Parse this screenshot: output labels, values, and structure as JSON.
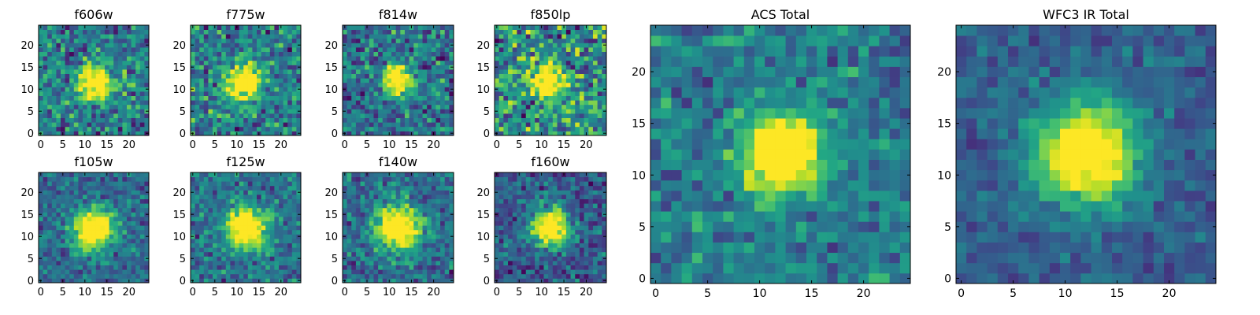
{
  "figure_title": "",
  "colormap": "viridis",
  "chart_data": [
    {
      "type": "heatmap",
      "title": "f606w",
      "xlabel": "",
      "ylabel": "",
      "xlim": [
        0,
        25
      ],
      "ylim": [
        0,
        25
      ],
      "xticks": [
        "0",
        "5",
        "10",
        "15",
        "20"
      ],
      "yticks": [
        "0",
        "5",
        "10",
        "15",
        "20"
      ],
      "grid": false,
      "source_center": [
        12,
        11.5
      ],
      "source_width": 2.6,
      "noise_level": 0.32,
      "background_level": 0.42
    },
    {
      "type": "heatmap",
      "title": "f775w",
      "xlabel": "",
      "ylabel": "",
      "xlim": [
        0,
        25
      ],
      "ylim": [
        0,
        25
      ],
      "xticks": [
        "0",
        "5",
        "10",
        "15",
        "20"
      ],
      "yticks": [
        "0",
        "5",
        "10",
        "15",
        "20"
      ],
      "grid": false,
      "source_center": [
        11.5,
        11.5
      ],
      "source_width": 2.6,
      "noise_level": 0.34,
      "background_level": 0.42
    },
    {
      "type": "heatmap",
      "title": "f814w",
      "xlabel": "",
      "ylabel": "",
      "xlim": [
        0,
        25
      ],
      "ylim": [
        0,
        25
      ],
      "xticks": [
        "0",
        "5",
        "10",
        "15",
        "20"
      ],
      "yticks": [
        "0",
        "5",
        "10",
        "15",
        "20"
      ],
      "grid": false,
      "source_center": [
        12,
        12
      ],
      "source_width": 2.4,
      "noise_level": 0.32,
      "background_level": 0.38
    },
    {
      "type": "heatmap",
      "title": "f850lp",
      "xlabel": "",
      "ylabel": "",
      "xlim": [
        0,
        25
      ],
      "ylim": [
        0,
        25
      ],
      "xticks": [
        "0",
        "5",
        "10",
        "15",
        "20"
      ],
      "yticks": [
        "0",
        "5",
        "10",
        "15",
        "20"
      ],
      "grid": false,
      "source_center": [
        11.5,
        12
      ],
      "source_width": 2.6,
      "noise_level": 0.42,
      "background_level": 0.5
    },
    {
      "type": "heatmap",
      "title": "f105w",
      "xlabel": "",
      "ylabel": "",
      "xlim": [
        0,
        25
      ],
      "ylim": [
        0,
        25
      ],
      "xticks": [
        "0",
        "5",
        "10",
        "15",
        "20"
      ],
      "yticks": [
        "0",
        "5",
        "10",
        "15",
        "20"
      ],
      "grid": false,
      "source_center": [
        12,
        11.5
      ],
      "source_width": 3.2,
      "noise_level": 0.22,
      "background_level": 0.35
    },
    {
      "type": "heatmap",
      "title": "f125w",
      "xlabel": "",
      "ylabel": "",
      "xlim": [
        0,
        25
      ],
      "ylim": [
        0,
        25
      ],
      "xticks": [
        "0",
        "5",
        "10",
        "15",
        "20"
      ],
      "yticks": [
        "0",
        "5",
        "10",
        "15",
        "20"
      ],
      "grid": false,
      "source_center": [
        12,
        12
      ],
      "source_width": 3.2,
      "noise_level": 0.24,
      "background_level": 0.38
    },
    {
      "type": "heatmap",
      "title": "f140w",
      "xlabel": "",
      "ylabel": "",
      "xlim": [
        0,
        25
      ],
      "ylim": [
        0,
        25
      ],
      "xticks": [
        "0",
        "5",
        "10",
        "15",
        "20"
      ],
      "yticks": [
        "0",
        "5",
        "10",
        "15",
        "20"
      ],
      "grid": false,
      "source_center": [
        12,
        12
      ],
      "source_width": 3.6,
      "noise_level": 0.24,
      "background_level": 0.35
    },
    {
      "type": "heatmap",
      "title": "f160w",
      "xlabel": "",
      "ylabel": "",
      "xlim": [
        0,
        25
      ],
      "ylim": [
        0,
        25
      ],
      "xticks": [
        "0",
        "5",
        "10",
        "15",
        "20"
      ],
      "yticks": [
        "0",
        "5",
        "10",
        "15",
        "20"
      ],
      "grid": false,
      "source_center": [
        12,
        12
      ],
      "source_width": 3.0,
      "noise_level": 0.24,
      "background_level": 0.28
    },
    {
      "type": "heatmap",
      "title": "ACS Total",
      "xlabel": "",
      "ylabel": "",
      "xlim": [
        0,
        25
      ],
      "ylim": [
        0,
        25
      ],
      "xticks": [
        "0",
        "5",
        "10",
        "15",
        "20"
      ],
      "yticks": [
        "0",
        "5",
        "10",
        "15",
        "20"
      ],
      "grid": false,
      "source_center": [
        12,
        12
      ],
      "source_width": 2.6,
      "noise_level": 0.22,
      "background_level": 0.42
    },
    {
      "type": "heatmap",
      "title": "WFC3 IR Total",
      "xlabel": "",
      "ylabel": "",
      "xlim": [
        0,
        25
      ],
      "ylim": [
        0,
        25
      ],
      "xticks": [
        "0",
        "5",
        "10",
        "15",
        "20"
      ],
      "yticks": [
        "0",
        "5",
        "10",
        "15",
        "20"
      ],
      "grid": false,
      "source_center": [
        12,
        12
      ],
      "source_width": 3.4,
      "noise_level": 0.14,
      "background_level": 0.3
    }
  ]
}
